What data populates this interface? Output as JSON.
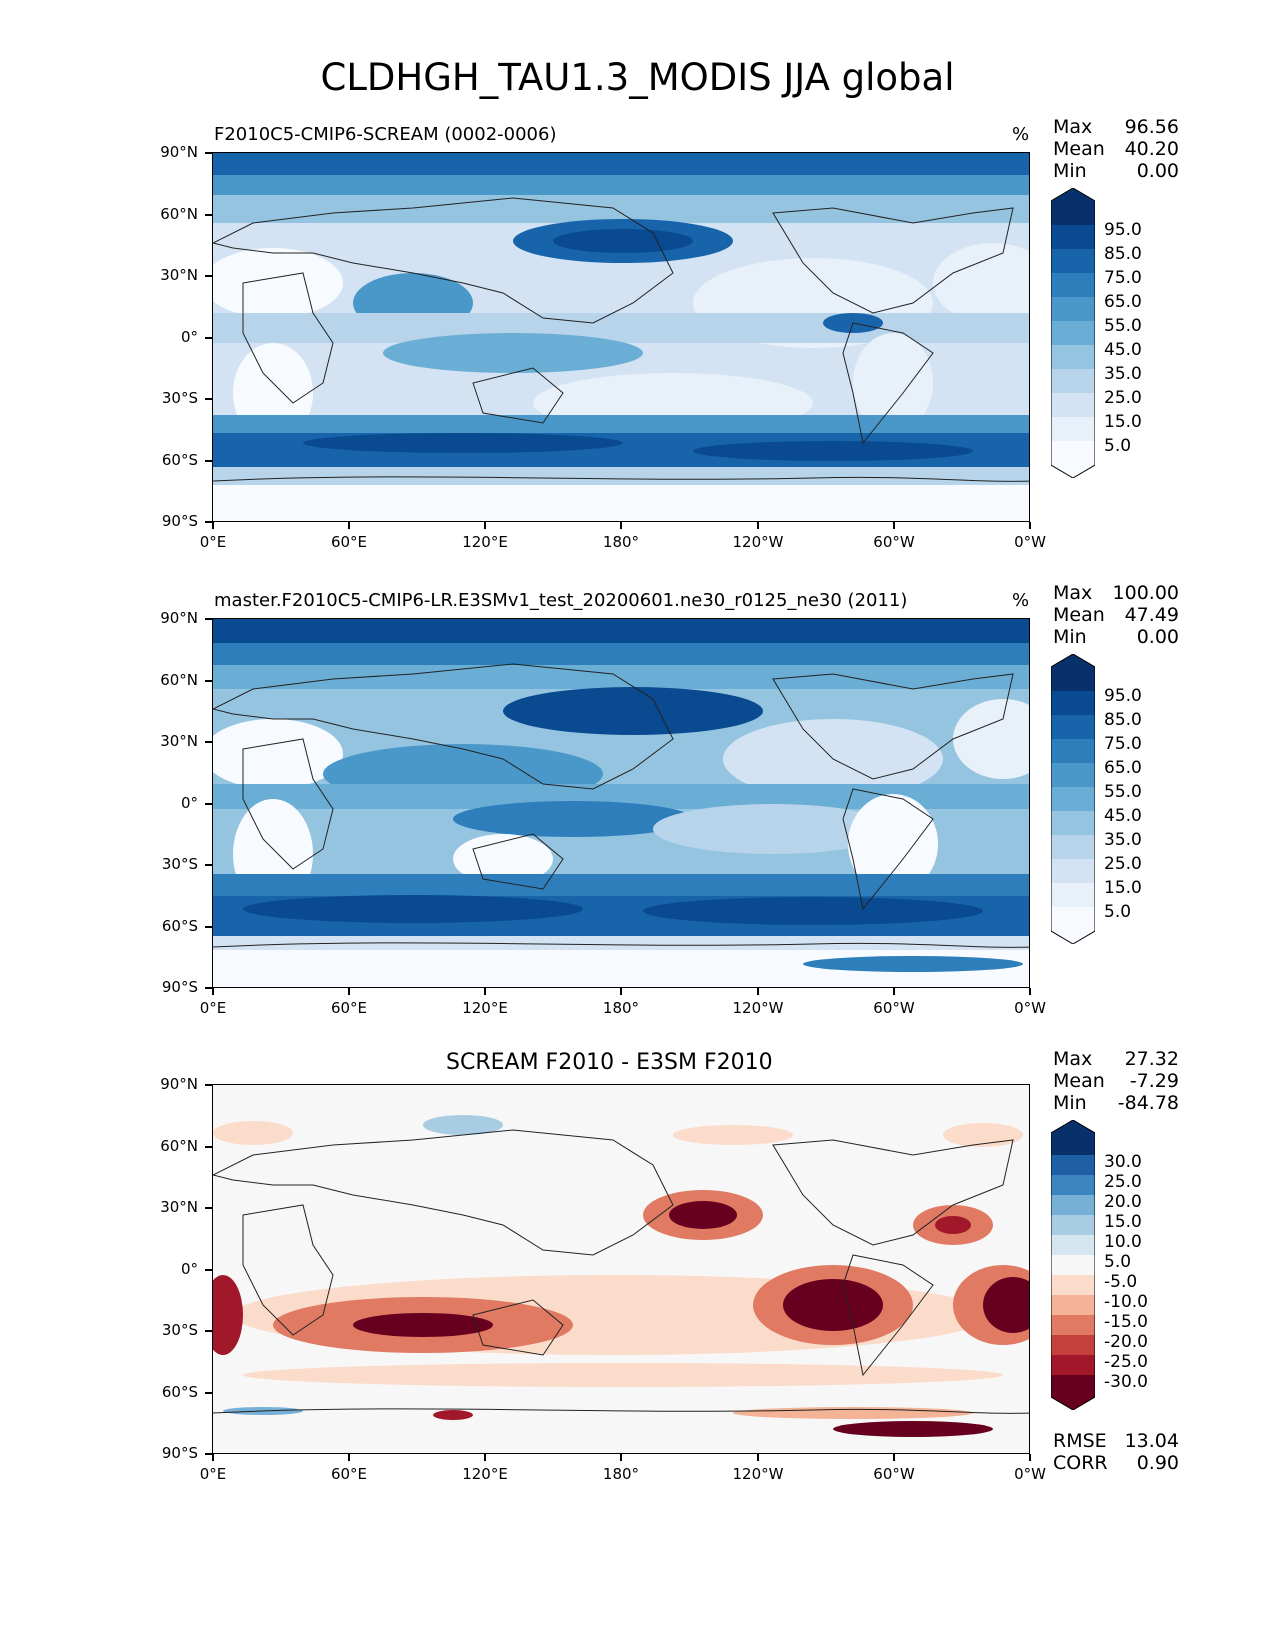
{
  "title": "CLDHGH_TAU1.3_MODIS JJA global",
  "axes": {
    "y_ticks": [
      "90°N",
      "60°N",
      "30°N",
      "0°",
      "30°S",
      "60°S",
      "90°S"
    ],
    "x_ticks": [
      "0°E",
      "60°E",
      "120°E",
      "180°",
      "120°W",
      "60°W",
      "0°W"
    ]
  },
  "panels": [
    {
      "id": "test",
      "left_title": "F2010C5-CMIP6-SCREAM (0002-0006)",
      "center_title": "",
      "units": "%",
      "stats": {
        "max_label": "Max",
        "max": "96.56",
        "mean_label": "Mean",
        "mean": "40.20",
        "min_label": "Min",
        "min": "0.00"
      },
      "colorbar": {
        "labels": [
          "95.0",
          "85.0",
          "75.0",
          "65.0",
          "55.0",
          "45.0",
          "35.0",
          "25.0",
          "15.0",
          "5.0"
        ],
        "colors": [
          "#08306b",
          "#0a4a90",
          "#1864aa",
          "#2e7ebc",
          "#4a98c9",
          "#6aaed6",
          "#94c4df",
          "#b7d4ea",
          "#d3e3f3",
          "#e8f1fa",
          "#f7fbff"
        ]
      }
    },
    {
      "id": "reference",
      "left_title": "master.F2010C5-CMIP6-LR.E3SMv1_test_20200601.ne30_r0125_ne30 (2011)",
      "center_title": "",
      "units": "%",
      "stats": {
        "max_label": "Max",
        "max": "100.00",
        "mean_label": "Mean",
        "mean": "47.49",
        "min_label": "Min",
        "min": "0.00"
      },
      "colorbar": {
        "labels": [
          "95.0",
          "85.0",
          "75.0",
          "65.0",
          "55.0",
          "45.0",
          "35.0",
          "25.0",
          "15.0",
          "5.0"
        ],
        "colors": [
          "#08306b",
          "#0a4a90",
          "#1864aa",
          "#2e7ebc",
          "#4a98c9",
          "#6aaed6",
          "#94c4df",
          "#b7d4ea",
          "#d3e3f3",
          "#e8f1fa",
          "#f7fbff"
        ]
      }
    },
    {
      "id": "difference",
      "left_title": "",
      "center_title": "SCREAM F2010 - E3SM F2010",
      "units": "",
      "stats": {
        "max_label": "Max",
        "max": "27.32",
        "mean_label": "Mean",
        "mean": "-7.29",
        "min_label": "Min",
        "min": "-84.78"
      },
      "colorbar": {
        "labels": [
          "30.0",
          "25.0",
          "20.0",
          "15.0",
          "10.0",
          "5.0",
          "-5.0",
          "-10.0",
          "-15.0",
          "-20.0",
          "-25.0",
          "-30.0"
        ],
        "colors": [
          "#08306b",
          "#1f5fa4",
          "#3d85c0",
          "#76b0d6",
          "#a8cde3",
          "#d5e6f1",
          "#f7f7f7",
          "#fbdccb",
          "#f4b296",
          "#e07a63",
          "#c3403d",
          "#a2182b",
          "#67001f"
        ]
      },
      "metrics": {
        "rmse_label": "RMSE",
        "rmse": "13.04",
        "corr_label": "CORR",
        "corr": "0.90"
      }
    }
  ]
}
